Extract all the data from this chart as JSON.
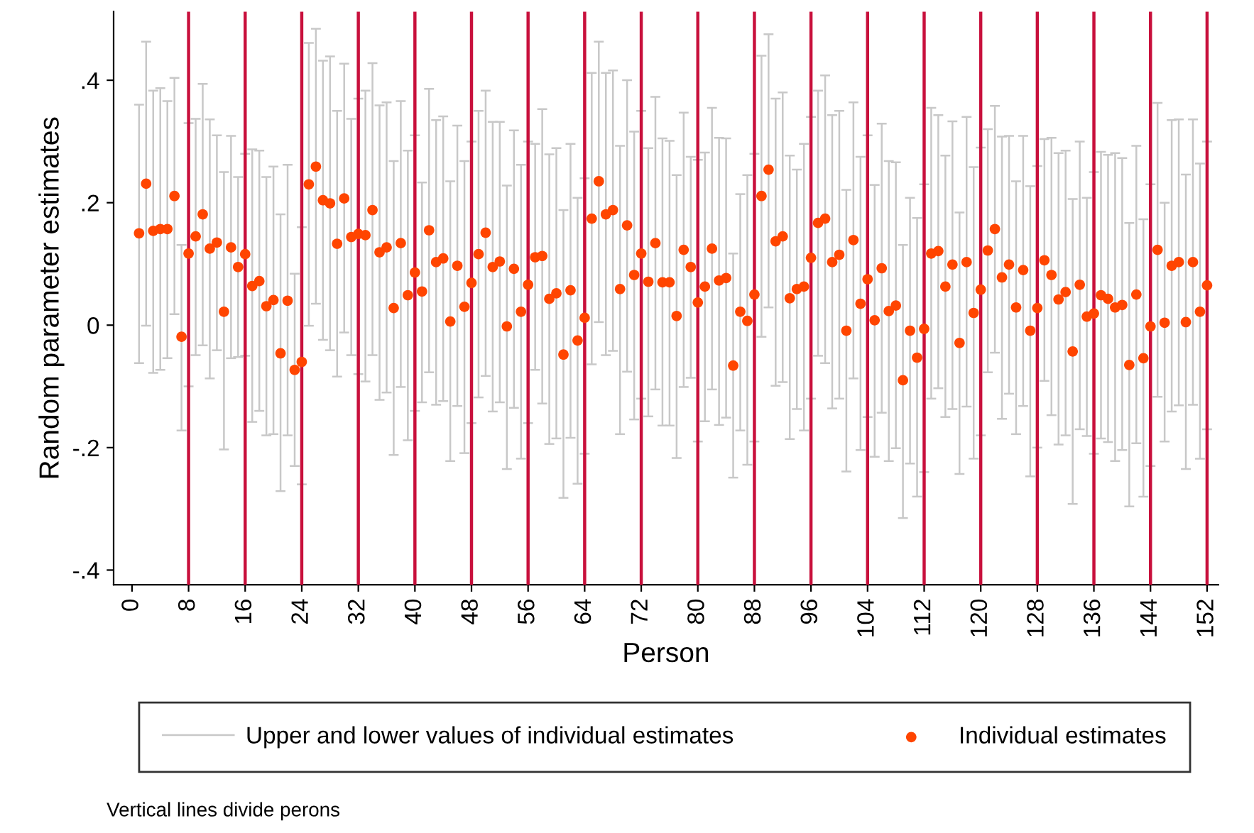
{
  "chart_data": {
    "type": "scatter",
    "xlabel": "Person",
    "ylabel": "Random parameter estimates",
    "x": [
      1,
      2,
      3,
      4,
      5,
      6,
      7,
      8,
      9,
      10,
      11,
      12,
      13,
      14,
      15,
      16,
      17,
      18,
      19,
      20,
      21,
      22,
      23,
      24,
      25,
      26,
      27,
      28,
      29,
      30,
      31,
      32,
      33,
      34,
      35,
      36,
      37,
      38,
      39,
      40,
      41,
      42,
      43,
      44,
      45,
      46,
      47,
      48,
      49,
      50,
      51,
      52,
      53,
      54,
      55,
      56,
      57,
      58,
      59,
      60,
      61,
      62,
      63,
      64,
      65,
      66,
      67,
      68,
      69,
      70,
      71,
      72,
      73,
      74,
      75,
      76,
      77,
      78,
      79,
      80,
      81,
      82,
      83,
      84,
      85,
      86,
      87,
      88,
      89,
      90,
      91,
      92,
      93,
      94,
      95,
      96,
      97,
      98,
      99,
      100,
      101,
      102,
      103,
      104,
      105,
      106,
      107,
      108,
      109,
      110,
      111,
      112,
      113,
      114,
      115,
      116,
      117,
      118,
      119,
      120,
      121,
      122,
      123,
      124,
      125,
      126,
      127,
      128,
      129,
      130,
      131,
      132,
      133,
      134,
      135,
      136,
      137,
      138,
      139,
      140,
      141,
      142,
      143,
      144,
      145,
      146,
      147,
      148,
      149,
      150,
      151,
      152
    ],
    "series": [
      {
        "name": "Individual estimates",
        "color": "#ff4500",
        "values": [
          0.15,
          0.231,
          0.154,
          0.157,
          0.157,
          0.211,
          -0.019,
          0.117,
          0.145,
          0.181,
          0.125,
          0.135,
          0.022,
          0.127,
          0.095,
          0.116,
          0.064,
          0.072,
          0.031,
          0.041,
          -0.046,
          0.04,
          -0.073,
          -0.06,
          0.23,
          0.259,
          0.204,
          0.199,
          0.133,
          0.207,
          0.144,
          0.149,
          0.147,
          0.188,
          0.119,
          0.127,
          0.028,
          0.134,
          0.049,
          0.086,
          0.055,
          0.155,
          0.103,
          0.109,
          0.006,
          0.097,
          0.03,
          0.069,
          0.116,
          0.151,
          0.095,
          0.104,
          -0.002,
          0.092,
          0.022,
          0.066,
          0.111,
          0.113,
          0.043,
          0.052,
          -0.048,
          0.057,
          -0.025,
          0.012,
          0.174,
          0.235,
          0.181,
          0.188,
          0.059,
          0.163,
          0.082,
          0.117,
          0.071,
          0.134,
          0.07,
          0.07,
          0.015,
          0.123,
          0.095,
          0.037,
          0.063,
          0.125,
          0.073,
          0.077,
          -0.066,
          0.022,
          0.007,
          0.05,
          0.211,
          0.254,
          0.137,
          0.145,
          0.044,
          0.059,
          0.063,
          0.11,
          0.167,
          0.174,
          0.103,
          0.115,
          -0.009,
          0.139,
          0.035,
          0.075,
          0.008,
          0.093,
          0.023,
          0.032,
          -0.09,
          -0.009,
          -0.053,
          -0.006,
          0.117,
          0.121,
          0.063,
          0.099,
          -0.029,
          0.103,
          0.02,
          0.058,
          0.122,
          0.157,
          0.078,
          0.099,
          0.029,
          0.09,
          -0.009,
          0.028,
          0.106,
          0.082,
          0.042,
          0.054,
          -0.043,
          0.066,
          0.014,
          0.019,
          0.049,
          0.043,
          0.029,
          0.033,
          -0.065,
          0.05,
          -0.054,
          -0.002,
          0.123,
          0.004,
          0.097,
          0.103,
          0.005,
          0.103,
          0.022,
          0.065
        ],
        "errors": [
          [
            -0.062,
            0.36
          ],
          [
            -0.001,
            0.463
          ],
          [
            -0.078,
            0.383
          ],
          [
            -0.073,
            0.387
          ],
          [
            -0.054,
            0.366
          ],
          [
            0.018,
            0.404
          ],
          [
            -0.172,
            0.131
          ],
          [
            -0.1,
            0.33
          ],
          [
            -0.049,
            0.337
          ],
          [
            -0.033,
            0.394
          ],
          [
            -0.087,
            0.336
          ],
          [
            -0.041,
            0.31
          ],
          [
            -0.203,
            0.25
          ],
          [
            -0.054,
            0.309
          ],
          [
            -0.052,
            0.242
          ],
          [
            -0.05,
            0.28
          ],
          [
            -0.158,
            0.287
          ],
          [
            -0.14,
            0.285
          ],
          [
            -0.18,
            0.242
          ],
          [
            -0.178,
            0.259
          ],
          [
            -0.271,
            0.181
          ],
          [
            -0.18,
            0.262
          ],
          [
            -0.23,
            0.084
          ],
          [
            -0.26,
            0.16
          ],
          [
            -0.001,
            0.461
          ],
          [
            0.035,
            0.484
          ],
          [
            -0.024,
            0.432
          ],
          [
            -0.041,
            0.439
          ],
          [
            -0.084,
            0.35
          ],
          [
            -0.012,
            0.427
          ],
          [
            -0.049,
            0.337
          ],
          [
            -0.08,
            0.37
          ],
          [
            -0.092,
            0.383
          ],
          [
            -0.049,
            0.428
          ],
          [
            -0.122,
            0.359
          ],
          [
            -0.11,
            0.364
          ],
          [
            -0.212,
            0.268
          ],
          [
            -0.101,
            0.366
          ],
          [
            -0.188,
            0.285
          ],
          [
            -0.14,
            0.31
          ],
          [
            -0.126,
            0.233
          ],
          [
            -0.077,
            0.386
          ],
          [
            -0.13,
            0.335
          ],
          [
            -0.124,
            0.341
          ],
          [
            -0.222,
            0.235
          ],
          [
            -0.132,
            0.326
          ],
          [
            -0.209,
            0.268
          ],
          [
            -0.16,
            0.3
          ],
          [
            -0.118,
            0.35
          ],
          [
            -0.083,
            0.383
          ],
          [
            -0.141,
            0.332
          ],
          [
            -0.126,
            0.332
          ],
          [
            -0.235,
            0.228
          ],
          [
            -0.135,
            0.318
          ],
          [
            -0.218,
            0.262
          ],
          [
            -0.16,
            0.3
          ],
          [
            -0.073,
            0.296
          ],
          [
            -0.128,
            0.353
          ],
          [
            -0.194,
            0.279
          ],
          [
            -0.185,
            0.289
          ],
          [
            -0.282,
            0.188
          ],
          [
            -0.184,
            0.296
          ],
          [
            -0.259,
            0.208
          ],
          [
            -0.21,
            0.24
          ],
          [
            -0.064,
            0.412
          ],
          [
            0.005,
            0.463
          ],
          [
            -0.049,
            0.412
          ],
          [
            -0.042,
            0.416
          ],
          [
            -0.178,
            0.293
          ],
          [
            -0.076,
            0.4
          ],
          [
            -0.154,
            0.316
          ],
          [
            -0.12,
            0.35
          ],
          [
            -0.149,
            0.289
          ],
          [
            -0.105,
            0.373
          ],
          [
            -0.164,
            0.305
          ],
          [
            -0.164,
            0.301
          ],
          [
            -0.217,
            0.245
          ],
          [
            -0.101,
            0.347
          ],
          [
            -0.086,
            0.275
          ],
          [
            -0.19,
            0.27
          ],
          [
            -0.157,
            0.282
          ],
          [
            -0.105,
            0.355
          ],
          [
            -0.163,
            0.306
          ],
          [
            -0.151,
            0.305
          ],
          [
            -0.249,
            0.117
          ],
          [
            -0.172,
            0.214
          ],
          [
            -0.228,
            0.245
          ],
          [
            -0.19,
            0.28
          ],
          [
            -0.019,
            0.44
          ],
          [
            0.029,
            0.475
          ],
          [
            -0.099,
            0.37
          ],
          [
            -0.093,
            0.38
          ],
          [
            -0.186,
            0.277
          ],
          [
            -0.137,
            0.254
          ],
          [
            -0.172,
            0.296
          ],
          [
            -0.12,
            0.34
          ],
          [
            -0.05,
            0.383
          ],
          [
            -0.062,
            0.408
          ],
          [
            -0.136,
            0.343
          ],
          [
            -0.12,
            0.35
          ],
          [
            -0.239,
            0.221
          ],
          [
            -0.087,
            0.364
          ],
          [
            -0.204,
            0.275
          ],
          [
            -0.15,
            0.31
          ],
          [
            -0.215,
            0.229
          ],
          [
            -0.143,
            0.329
          ],
          [
            -0.222,
            0.268
          ],
          [
            -0.201,
            0.266
          ],
          [
            -0.315,
            0.131
          ],
          [
            -0.226,
            0.208
          ],
          [
            -0.28,
            0.175
          ],
          [
            -0.24,
            0.23
          ],
          [
            -0.12,
            0.355
          ],
          [
            -0.103,
            0.343
          ],
          [
            -0.15,
            0.277
          ],
          [
            -0.137,
            0.333
          ],
          [
            -0.243,
            0.184
          ],
          [
            -0.133,
            0.34
          ],
          [
            -0.218,
            0.258
          ],
          [
            -0.18,
            0.29
          ],
          [
            -0.077,
            0.32
          ],
          [
            -0.045,
            0.358
          ],
          [
            -0.153,
            0.308
          ],
          [
            -0.112,
            0.309
          ],
          [
            -0.178,
            0.235
          ],
          [
            -0.132,
            0.309
          ],
          [
            -0.247,
            0.227
          ],
          [
            -0.2,
            0.26
          ],
          [
            -0.091,
            0.304
          ],
          [
            -0.147,
            0.306
          ],
          [
            -0.195,
            0.281
          ],
          [
            -0.18,
            0.285
          ],
          [
            -0.292,
            0.206
          ],
          [
            -0.17,
            0.3
          ],
          [
            -0.181,
            0.208
          ],
          [
            -0.21,
            0.25
          ],
          [
            -0.185,
            0.283
          ],
          [
            -0.191,
            0.278
          ],
          [
            -0.222,
            0.281
          ],
          [
            -0.204,
            0.273
          ],
          [
            -0.296,
            0.167
          ],
          [
            -0.193,
            0.293
          ],
          [
            -0.28,
            0.173
          ],
          [
            -0.23,
            0.23
          ],
          [
            -0.117,
            0.363
          ],
          [
            -0.19,
            0.2
          ],
          [
            -0.141,
            0.335
          ],
          [
            -0.131,
            0.336
          ],
          [
            -0.235,
            0.246
          ],
          [
            -0.13,
            0.336
          ],
          [
            -0.218,
            0.264
          ],
          [
            -0.17,
            0.3
          ]
        ]
      }
    ],
    "xlim": [
      -2.6,
      153.6
    ],
    "ylim": [
      -0.424,
      0.512
    ],
    "xticks": [
      0,
      8,
      16,
      24,
      32,
      40,
      48,
      56,
      64,
      72,
      80,
      88,
      96,
      104,
      112,
      120,
      128,
      136,
      144,
      152
    ],
    "yticks": [
      {
        "value": -0.4,
        "label": "-.4"
      },
      {
        "value": -0.2,
        "label": "-.2"
      },
      {
        "value": 0,
        "label": "0"
      },
      {
        "value": 0.2,
        "label": ".2"
      },
      {
        "value": 0.4,
        "label": ".4"
      }
    ],
    "ref_lines": [
      {
        "axis": "x",
        "value": 8,
        "color": "#c8103c"
      },
      {
        "axis": "x",
        "value": 16,
        "color": "#c8103c"
      },
      {
        "axis": "x",
        "value": 24,
        "color": "#c8103c"
      },
      {
        "axis": "x",
        "value": 32,
        "color": "#c8103c"
      },
      {
        "axis": "x",
        "value": 40,
        "color": "#c8103c"
      },
      {
        "axis": "x",
        "value": 48,
        "color": "#c8103c"
      },
      {
        "axis": "x",
        "value": 56,
        "color": "#c8103c"
      },
      {
        "axis": "x",
        "value": 64,
        "color": "#c8103c"
      },
      {
        "axis": "x",
        "value": 72,
        "color": "#c8103c"
      },
      {
        "axis": "x",
        "value": 80,
        "color": "#c8103c"
      },
      {
        "axis": "x",
        "value": 88,
        "color": "#c8103c"
      },
      {
        "axis": "x",
        "value": 96,
        "color": "#c8103c"
      },
      {
        "axis": "x",
        "value": 104,
        "color": "#c8103c"
      },
      {
        "axis": "x",
        "value": 112,
        "color": "#c8103c"
      },
      {
        "axis": "x",
        "value": 120,
        "color": "#c8103c"
      },
      {
        "axis": "x",
        "value": 128,
        "color": "#c8103c"
      },
      {
        "axis": "x",
        "value": 136,
        "color": "#c8103c"
      },
      {
        "axis": "x",
        "value": 144,
        "color": "#c8103c"
      },
      {
        "axis": "x",
        "value": 152,
        "color": "#c8103c"
      }
    ],
    "annotations": [
      "Upper and lower values of individual estimates",
      "Vertical lines divide perons"
    ],
    "legend": "bottom",
    "grid": false,
    "marker": "circle"
  }
}
